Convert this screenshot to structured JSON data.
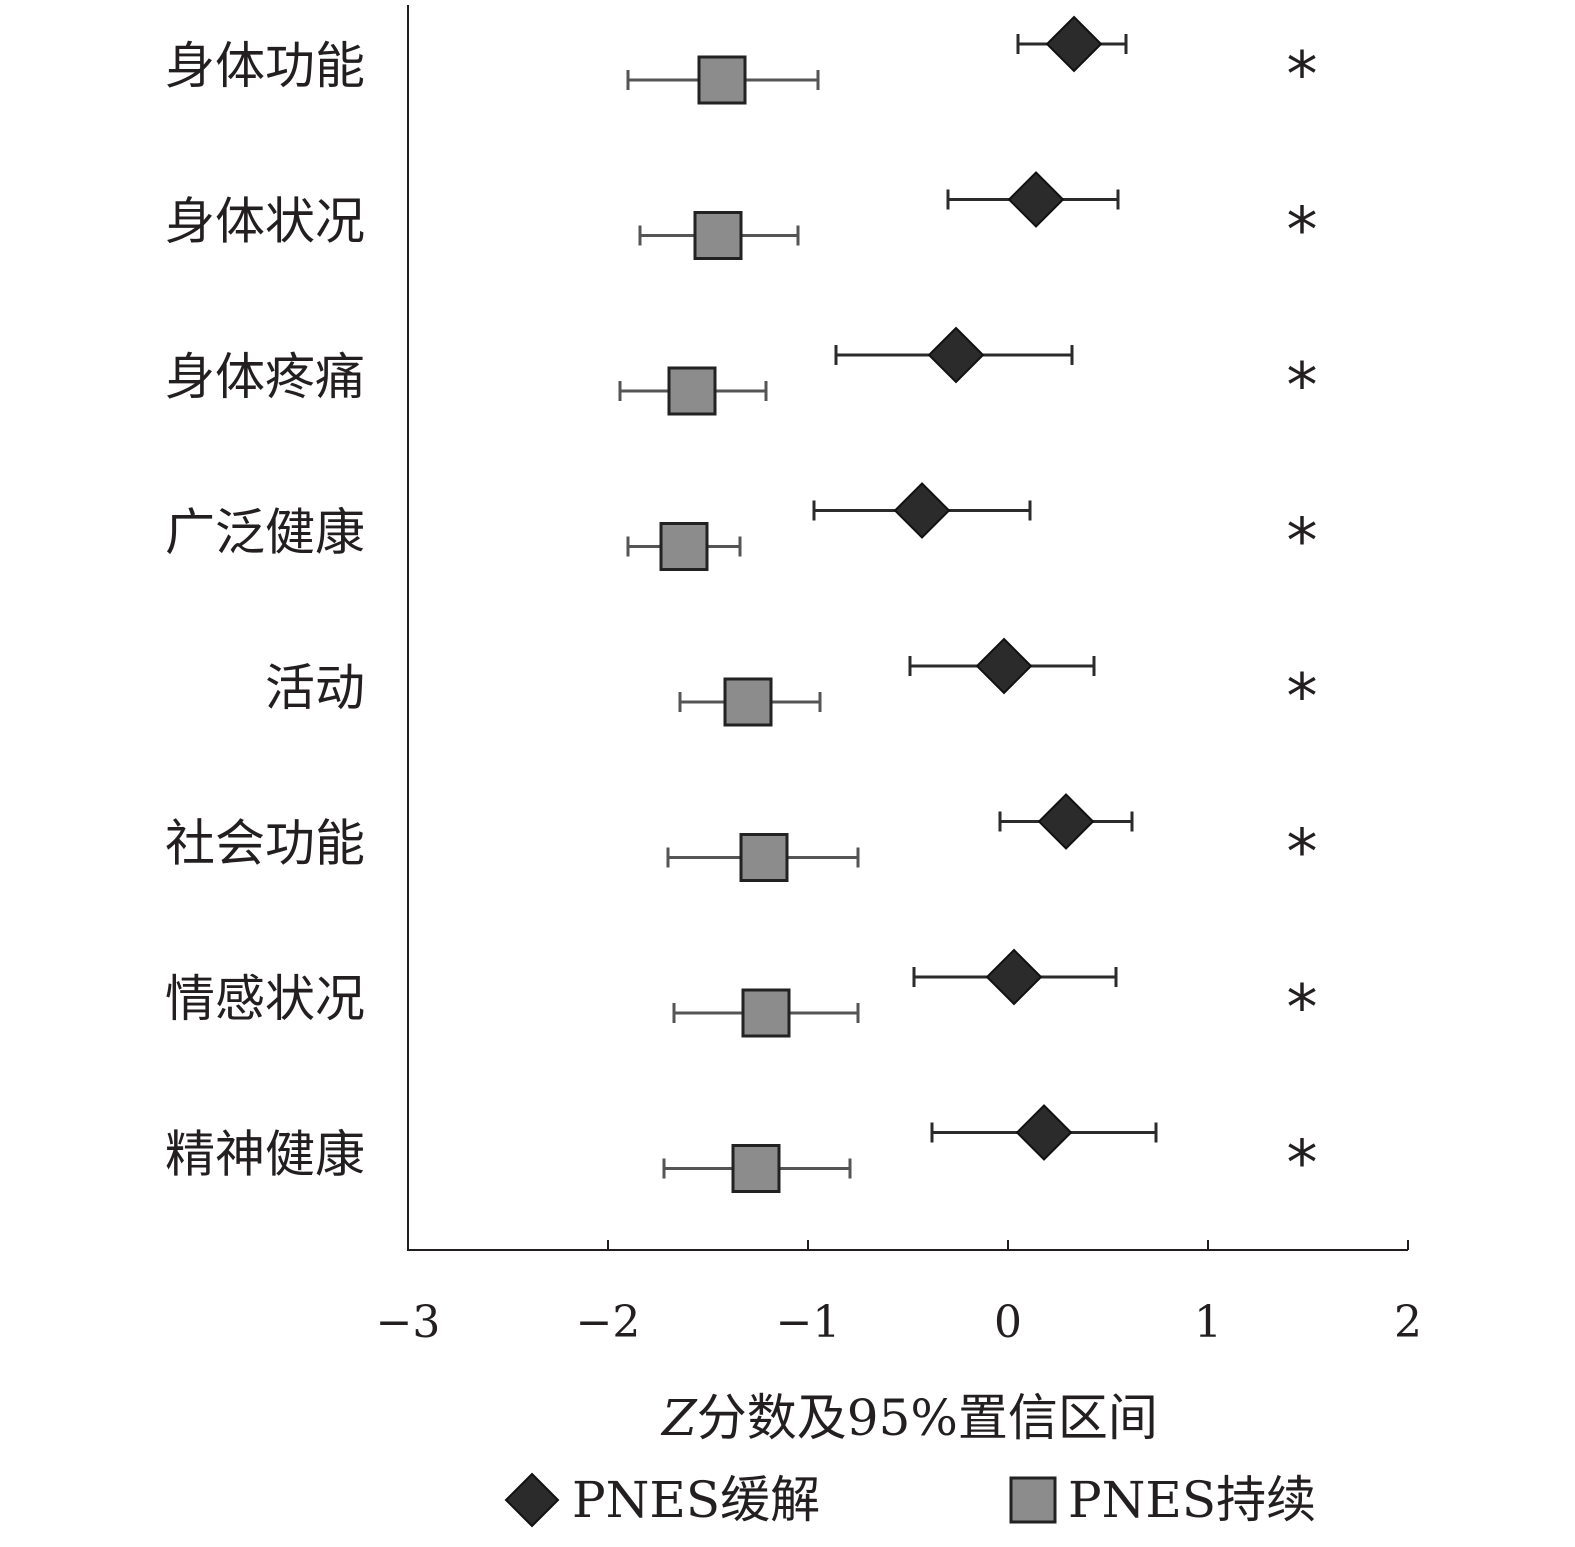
{
  "chart_data": {
    "type": "forest",
    "xlabel_italic": "Z",
    "xlabel_rest": "分数及95%置信区间",
    "xlim": [
      -3,
      2
    ],
    "x_ticks": [
      -3,
      -2,
      -1,
      0,
      1,
      2
    ],
    "x_tick_labels": [
      "−3",
      "−2",
      "−1",
      "0",
      "1",
      "2"
    ],
    "categories": [
      "身体功能",
      "身体状况",
      "身体疼痛",
      "广泛健康",
      "活动",
      "社会功能",
      "情感状况",
      "精神健康"
    ],
    "series": [
      {
        "name": "PNES缓解",
        "marker": "diamond",
        "color": "#2b2b2b",
        "points": [
          {
            "value": 0.33,
            "low": 0.05,
            "high": 0.59
          },
          {
            "value": 0.14,
            "low": -0.3,
            "high": 0.55
          },
          {
            "value": -0.26,
            "low": -0.86,
            "high": 0.32
          },
          {
            "value": -0.43,
            "low": -0.97,
            "high": 0.11
          },
          {
            "value": -0.02,
            "low": -0.49,
            "high": 0.43
          },
          {
            "value": 0.29,
            "low": -0.04,
            "high": 0.62
          },
          {
            "value": 0.03,
            "low": -0.47,
            "high": 0.54
          },
          {
            "value": 0.18,
            "low": -0.38,
            "high": 0.74
          }
        ]
      },
      {
        "name": "PNES持续",
        "marker": "square",
        "color": "#8c8c8c",
        "points": [
          {
            "value": -1.43,
            "low": -1.9,
            "high": -0.95
          },
          {
            "value": -1.45,
            "low": -1.84,
            "high": -1.05
          },
          {
            "value": -1.58,
            "low": -1.94,
            "high": -1.21
          },
          {
            "value": -1.62,
            "low": -1.9,
            "high": -1.34
          },
          {
            "value": -1.3,
            "low": -1.64,
            "high": -0.94
          },
          {
            "value": -1.22,
            "low": -1.7,
            "high": -0.75
          },
          {
            "value": -1.21,
            "low": -1.67,
            "high": -0.75
          },
          {
            "value": -1.26,
            "low": -1.72,
            "high": -0.79
          }
        ]
      }
    ],
    "significance_marker": "*",
    "significant": [
      true,
      true,
      true,
      true,
      true,
      true,
      true,
      true
    ],
    "legend_position": "bottom",
    "grid": false
  }
}
